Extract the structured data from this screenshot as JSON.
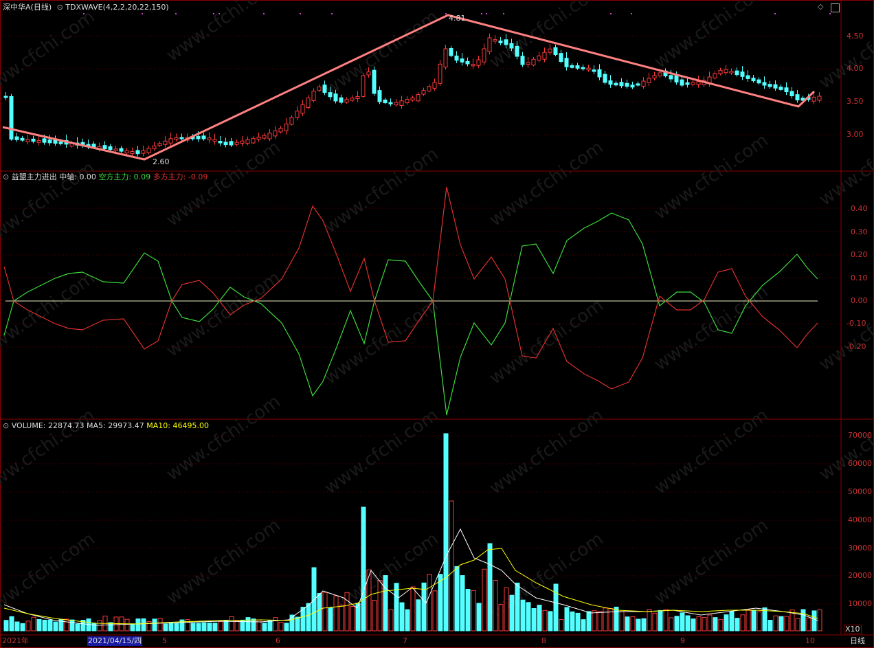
{
  "header": {
    "symbol": "深中华A(日线)",
    "indicator": "TDXWAVE(4,2,2,20,22,150)",
    "diamond_icon": "diamond-icon",
    "window_icon": "window-toggle-icon"
  },
  "price_pane": {
    "y_ticks": [
      "4.50",
      "4.00",
      "3.50",
      "3.00"
    ],
    "high_label": "4.81",
    "low_label": "2.60"
  },
  "flow_pane": {
    "title": "益盟主力进出",
    "mid_label": "中轴:",
    "mid_value": "0.00",
    "short_label": "空方主力:",
    "short_value": "0.09",
    "long_label": "多方主力:",
    "long_value": "-0.09",
    "y_ticks": [
      "0.40",
      "0.30",
      "0.20",
      "0.10",
      "0.00",
      "-0.10",
      "-0.20"
    ]
  },
  "volume_pane": {
    "title": "VOLUME:",
    "value": "22874.73",
    "ma5_label": "MA5:",
    "ma5_value": "29973.47",
    "ma10_label": "MA10:",
    "ma10_value": "46495.00",
    "y_ticks": [
      "70000",
      "60000",
      "50000",
      "40000",
      "30000",
      "20000",
      "10000"
    ],
    "unit": "X10"
  },
  "time_axis": {
    "labels": [
      "2021年",
      "5",
      "6",
      "7",
      "8",
      "9",
      "10"
    ],
    "cursor_date": "2021/04/15/四",
    "period_label": "日线"
  },
  "watermark": "www.cfchi.com",
  "colors": {
    "up": "#ff3b3b",
    "down": "#54ffff",
    "wave": "#ff8080",
    "short_line": "#3cdc3c",
    "long_line": "#e03030",
    "ma5": "#ffffff",
    "ma10": "#ffff00",
    "grid": "#8b0000"
  }
}
